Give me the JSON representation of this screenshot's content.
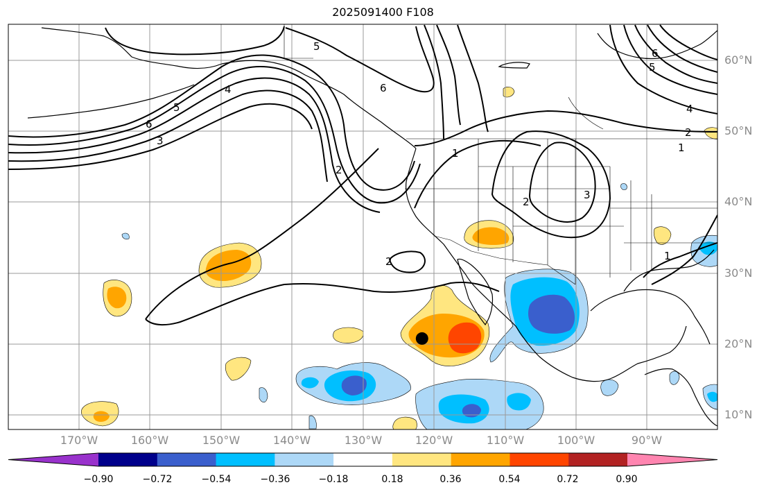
{
  "title": "2025091400 F108",
  "map": {
    "projection": "PlateCarree",
    "lon_range": [
      -181,
      -79
    ],
    "lat_range": [
      8,
      65
    ]
  },
  "lat_labels": [
    "60°N",
    "50°N",
    "40°N",
    "30°N",
    "20°N",
    "10°N"
  ],
  "lon_labels": [
    "170°W",
    "160°W",
    "150°W",
    "140°W",
    "130°W",
    "120°W",
    "110°W",
    "100°W",
    "90°W"
  ],
  "contour_labels": [
    "5",
    "4",
    "5",
    "6",
    "3",
    "6",
    "2",
    "1",
    "2",
    "3",
    "2",
    "6",
    "5",
    "4",
    "2",
    "1",
    "1"
  ],
  "colorbar": {
    "ticks": [
      "−0.90",
      "−0.72",
      "−0.54",
      "−0.36",
      "−0.18",
      "0.18",
      "0.36",
      "0.54",
      "0.72",
      "0.90"
    ],
    "colors": [
      "#9932cc",
      "#00008b",
      "#3a5fcd",
      "#00bfff",
      "#add8f7",
      "#ffffff",
      "#ffe680",
      "#ffa500",
      "#ff4500",
      "#b22222",
      "#ff85b0"
    ]
  },
  "marker": {
    "label": "storm-center",
    "lon": -121.5,
    "lat": 20.8
  }
}
